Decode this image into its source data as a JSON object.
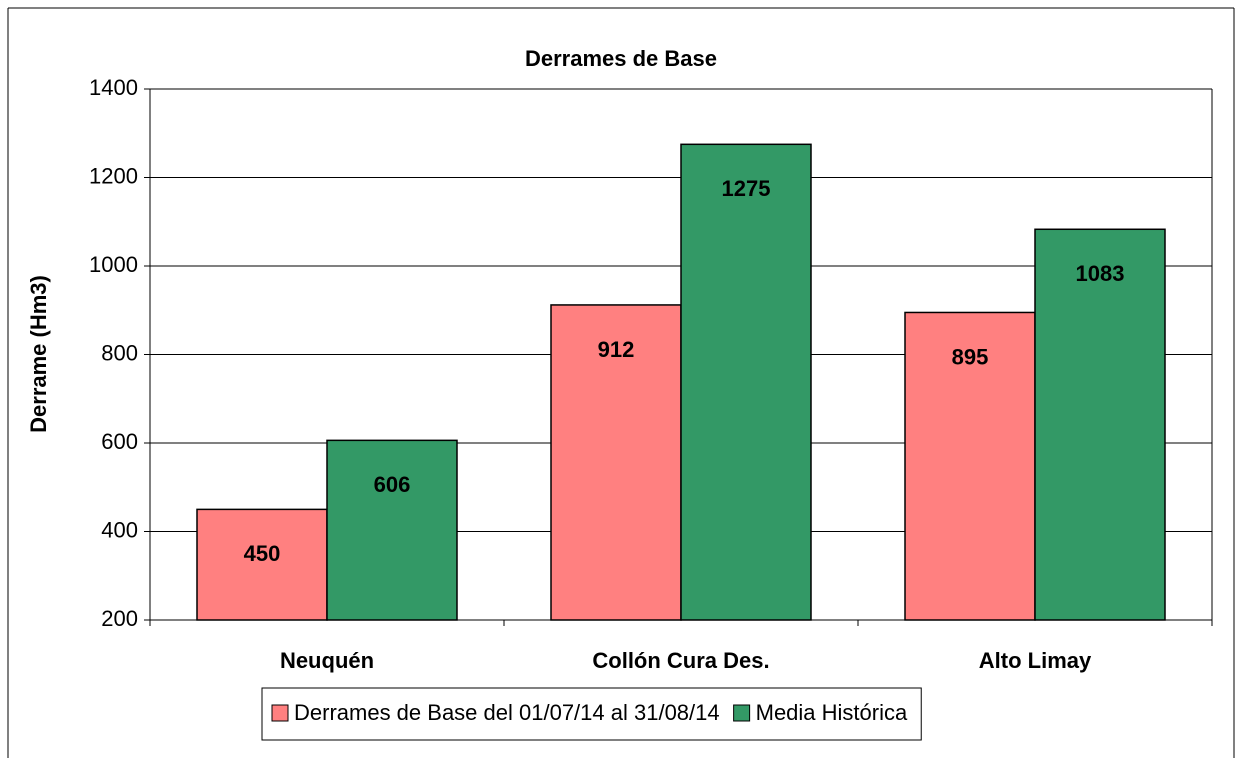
{
  "chart_data": {
    "type": "bar",
    "title": "Derrames de Base",
    "y_label": "Derrame (Hm3)",
    "categories": [
      "Neuquén",
      "Collón Cura Des.",
      "Alto Limay"
    ],
    "series": [
      {
        "name": "Derrames de Base del 01/07/14 al 31/08/14",
        "color": "#ff8080",
        "values": [
          450,
          912,
          895
        ]
      },
      {
        "name": "Media Histórica",
        "color": "#339966",
        "values": [
          606,
          1275,
          1083
        ]
      }
    ],
    "ylim": [
      200,
      1400
    ],
    "yticks": [
      200,
      400,
      600,
      800,
      1000,
      1200,
      1400
    ],
    "grid": true,
    "legend": "bottom"
  }
}
